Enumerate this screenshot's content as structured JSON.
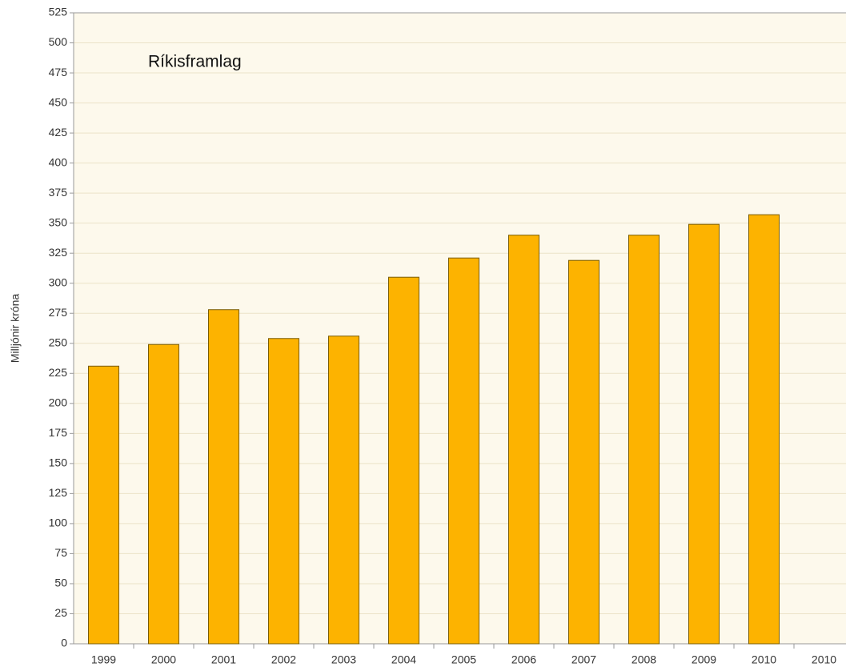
{
  "chart_data": {
    "type": "bar",
    "title": "Ríkisframlag",
    "y_label": "Milljónir króna",
    "categories": [
      "1999",
      "2000",
      "2001",
      "2002",
      "2003",
      "2004",
      "2005",
      "2006",
      "2007",
      "2008",
      "2009",
      "2010",
      "2010"
    ],
    "values": [
      231,
      249,
      278,
      254,
      256,
      305,
      321,
      340,
      319,
      340,
      349,
      357,
      null
    ],
    "color": "#fdb300",
    "edge_color": "#7a5c00",
    "ylim": [
      0,
      525
    ],
    "yticks": [
      0,
      25,
      50,
      75,
      100,
      125,
      150,
      175,
      200,
      225,
      250,
      275,
      300,
      325,
      350,
      375,
      400,
      425,
      450,
      475,
      500,
      525
    ],
    "grid": true
  }
}
